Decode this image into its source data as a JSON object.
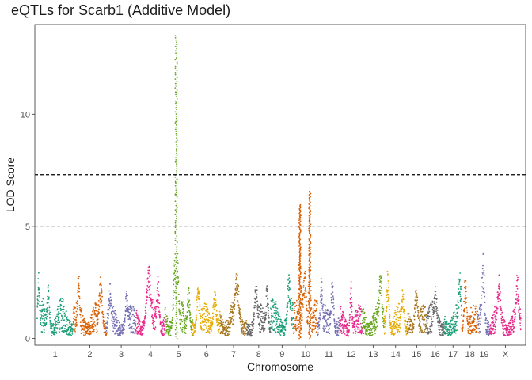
{
  "chart_data": {
    "type": "scatter",
    "title": "eQTLs for Scarb1 (Additive Model)",
    "xlabel": "Chromosome",
    "ylabel": "LOD Score",
    "ylim": [
      -0.3,
      14.0
    ],
    "yticks": [
      0,
      5,
      10
    ],
    "grid": false,
    "legend": "none",
    "thresholds": [
      {
        "value": 7.3,
        "style": "dashed",
        "color": "#000000"
      },
      {
        "value": 5.0,
        "style": "dashed",
        "color": "#b3b3b3"
      }
    ],
    "categories": [
      "1",
      "2",
      "3",
      "4",
      "5",
      "6",
      "7",
      "8",
      "9",
      "10",
      "11",
      "12",
      "13",
      "14",
      "15",
      "16",
      "17",
      "18",
      "19",
      "X"
    ],
    "chromosomes": [
      {
        "name": "1",
        "color": "#1B9E77",
        "start_mb": 0,
        "end_mb": 195,
        "base": 1.8,
        "peaks": [
          [
            8,
            3.1,
            6
          ],
          [
            60,
            2.4,
            8
          ]
        ]
      },
      {
        "name": "2",
        "color": "#D95F02",
        "start_mb": 195,
        "end_mb": 377,
        "base": 1.7,
        "peaks": [
          [
            30,
            3.3,
            6
          ],
          [
            150,
            2.9,
            10
          ]
        ]
      },
      {
        "name": "3",
        "color": "#7570B3",
        "start_mb": 377,
        "end_mb": 537,
        "base": 1.6,
        "peaks": [
          [
            20,
            2.5,
            8
          ],
          [
            110,
            2.3,
            8
          ]
        ]
      },
      {
        "name": "4",
        "color": "#E7298A",
        "start_mb": 537,
        "end_mb": 694,
        "base": 1.8,
        "peaks": [
          [
            70,
            3.4,
            14
          ],
          [
            120,
            2.8,
            8
          ]
        ]
      },
      {
        "name": "5",
        "color": "#66A61E",
        "start_mb": 694,
        "end_mb": 846,
        "base": 1.9,
        "peaks": [
          [
            62,
            13.6,
            4
          ],
          [
            62,
            5.0,
            12
          ],
          [
            130,
            2.3,
            8
          ]
        ]
      },
      {
        "name": "6",
        "color": "#E6AB02",
        "start_mb": 846,
        "end_mb": 996,
        "base": 1.6,
        "peaks": [
          [
            30,
            2.3,
            10
          ],
          [
            120,
            2.2,
            10
          ]
        ]
      },
      {
        "name": "7",
        "color": "#A6761D",
        "start_mb": 996,
        "end_mb": 1141,
        "base": 1.8,
        "peaks": [
          [
            90,
            3.0,
            14
          ]
        ]
      },
      {
        "name": "8",
        "color": "#666666",
        "start_mb": 1141,
        "end_mb": 1270,
        "base": 1.6,
        "peaks": [
          [
            50,
            2.6,
            10
          ],
          [
            110,
            2.4,
            8
          ]
        ]
      },
      {
        "name": "9",
        "color": "#1B9E77",
        "start_mb": 1270,
        "end_mb": 1395,
        "base": 1.9,
        "peaks": [
          [
            100,
            2.9,
            10
          ]
        ]
      },
      {
        "name": "10",
        "color": "#D95F02",
        "start_mb": 1395,
        "end_mb": 1526,
        "base": 1.9,
        "peaks": [
          [
            35,
            6.0,
            4
          ],
          [
            88,
            6.6,
            5
          ],
          [
            60,
            3.2,
            10
          ]
        ]
      },
      {
        "name": "11",
        "color": "#7570B3",
        "start_mb": 1526,
        "end_mb": 1648,
        "base": 1.6,
        "peaks": [
          [
            20,
            2.9,
            6
          ],
          [
            80,
            2.7,
            8
          ]
        ]
      },
      {
        "name": "12",
        "color": "#E7298A",
        "start_mb": 1648,
        "end_mb": 1768,
        "base": 1.5,
        "peaks": [
          [
            60,
            2.6,
            6
          ]
        ]
      },
      {
        "name": "13",
        "color": "#66A61E",
        "start_mb": 1768,
        "end_mb": 1888,
        "base": 1.8,
        "peaks": [
          [
            100,
            3.1,
            10
          ]
        ]
      },
      {
        "name": "14",
        "color": "#E6AB02",
        "start_mb": 1888,
        "end_mb": 2013,
        "base": 1.6,
        "peaks": [
          [
            20,
            3.1,
            8
          ],
          [
            100,
            2.3,
            8
          ]
        ]
      },
      {
        "name": "15",
        "color": "#A6761D",
        "start_mb": 2013,
        "end_mb": 2117,
        "base": 1.6,
        "peaks": [
          [
            50,
            2.4,
            10
          ]
        ]
      },
      {
        "name": "16",
        "color": "#666666",
        "start_mb": 2117,
        "end_mb": 2215,
        "base": 1.7,
        "peaks": [
          [
            50,
            2.4,
            10
          ]
        ]
      },
      {
        "name": "17",
        "color": "#1B9E77",
        "start_mb": 2215,
        "end_mb": 2310,
        "base": 1.7,
        "peaks": [
          [
            85,
            3.1,
            8
          ]
        ]
      },
      {
        "name": "18",
        "color": "#D95F02",
        "start_mb": 2310,
        "end_mb": 2401,
        "base": 1.6,
        "peaks": [
          [
            20,
            2.8,
            8
          ]
        ]
      },
      {
        "name": "19",
        "color": "#7570B3",
        "start_mb": 2401,
        "end_mb": 2462,
        "base": 1.6,
        "peaks": [
          [
            25,
            3.9,
            8
          ]
        ]
      },
      {
        "name": "X",
        "color": "#E7298A",
        "start_mb": 2462,
        "end_mb": 2633,
        "base": 1.6,
        "peaks": [
          [
            50,
            2.9,
            10
          ],
          [
            150,
            2.9,
            10
          ]
        ]
      }
    ]
  }
}
